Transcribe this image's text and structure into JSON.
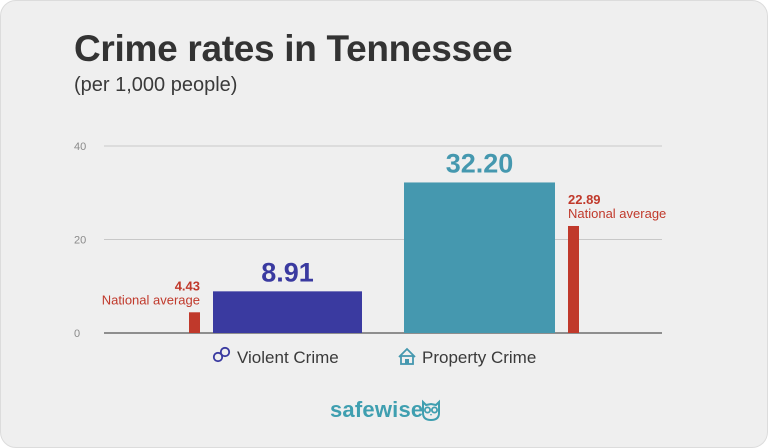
{
  "title": "Crime rates in Tennessee",
  "subtitle": "(per 1,000 people)",
  "brand": "safewise",
  "colors": {
    "violent": "#3a3aa0",
    "property": "#4598af",
    "national": "#c0392b",
    "grid": "#c8c8c8",
    "axis": "#555555"
  },
  "chart_data": {
    "type": "bar",
    "title": "Crime rates in Tennessee",
    "subtitle": "(per 1,000 people)",
    "ylim": [
      0,
      40
    ],
    "yticks": [
      "0",
      "20",
      "40"
    ],
    "grid": true,
    "categories": [
      {
        "label": "Violent Crime",
        "icon": "handcuffs-icon",
        "value": 8.91,
        "value_label": "8.91",
        "national_value": 4.43,
        "national_label": "4.43",
        "national_note": "National average"
      },
      {
        "label": "Property Crime",
        "icon": "house-icon",
        "value": 32.2,
        "value_label": "32.20",
        "national_value": 22.89,
        "national_label": "22.89",
        "national_note": "National average"
      }
    ]
  }
}
